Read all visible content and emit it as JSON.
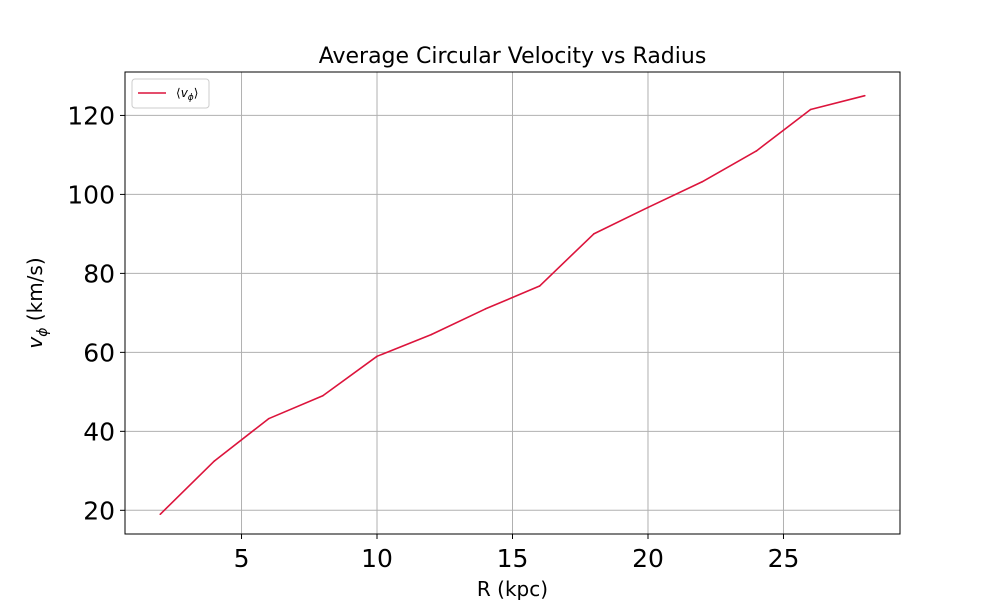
{
  "chart_data": {
    "type": "line",
    "title": "Average Circular Velocity vs Radius",
    "xlabel": "R (kpc)",
    "ylabel": {
      "main": "v",
      "sub": "ϕ",
      "unit": " (km/s)"
    },
    "xlim": [
      0.7,
      29.3
    ],
    "ylim": [
      14,
      131
    ],
    "xticks": [
      5,
      10,
      15,
      20,
      25
    ],
    "yticks": [
      20,
      40,
      60,
      80,
      100,
      120
    ],
    "grid": true,
    "legend_position": "top-left",
    "series": [
      {
        "name": "⟨vϕ⟩",
        "legend": {
          "pre": "⟨",
          "main": "v",
          "sub": "ϕ",
          "post": "⟩"
        },
        "color": "#dc143c",
        "x": [
          2,
          4,
          6,
          8,
          10,
          12,
          14,
          16,
          18,
          20,
          22,
          24,
          26,
          28
        ],
        "y": [
          19,
          32.5,
          43.2,
          49,
          59,
          64.5,
          71,
          76.8,
          90,
          96.7,
          103.2,
          111,
          121.5,
          125
        ]
      }
    ]
  }
}
